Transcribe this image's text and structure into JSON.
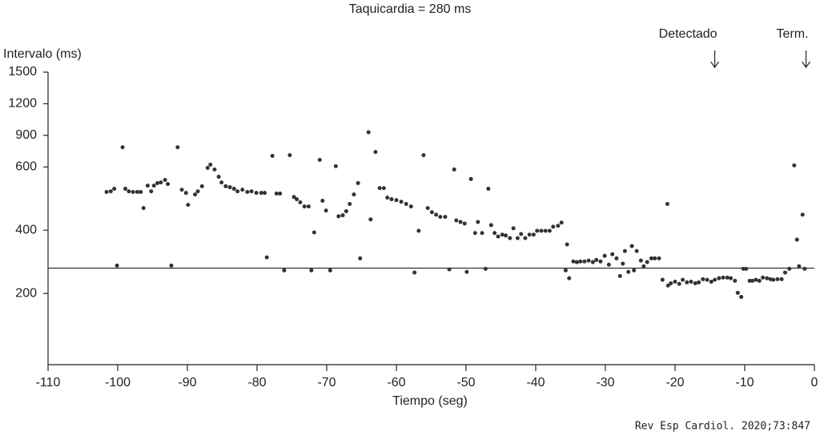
{
  "chart_data": {
    "type": "scatter",
    "title": "Taquicardia = 280 ms",
    "ylabel": "Intervalo (ms)",
    "xlabel": "Tiempo (seg)",
    "source": "Rev Esp Cardiol. 2020;73:847",
    "color": "#333333",
    "threshold": 280,
    "y_break": 600,
    "xlim": [
      -110,
      0
    ],
    "xticks": [
      -110,
      -100,
      -90,
      -80,
      -70,
      -60,
      -50,
      -40,
      -30,
      -20,
      -10,
      0
    ],
    "ylim": [
      0,
      1500
    ],
    "yticks": [
      200,
      400,
      600,
      900,
      1200,
      1500
    ],
    "annotations": [
      {
        "text": "Detectado",
        "x": -14.3
      },
      {
        "text": "Term.",
        "x": -1.2
      }
    ],
    "x": [
      -101.6,
      -101.0,
      -100.5,
      -100.1,
      -99.3,
      -98.9,
      -98.4,
      -97.8,
      -97.2,
      -96.7,
      -96.3,
      -95.7,
      -95.2,
      -94.8,
      -94.3,
      -93.8,
      -93.2,
      -92.8,
      -92.3,
      -91.4,
      -90.8,
      -90.2,
      -89.9,
      -88.9,
      -88.5,
      -87.9,
      -87.1,
      -86.7,
      -86.1,
      -85.5,
      -85.1,
      -84.5,
      -83.9,
      -83.3,
      -82.8,
      -82.1,
      -81.4,
      -80.8,
      -80.1,
      -79.4,
      -78.9,
      -78.6,
      -77.8,
      -77.2,
      -76.7,
      -76.1,
      -75.3,
      -74.7,
      -74.3,
      -73.8,
      -73.2,
      -72.6,
      -71.8,
      -72.2,
      -71.0,
      -70.6,
      -70.1,
      -69.5,
      -68.7,
      -68.3,
      -67.7,
      -67.2,
      -66.7,
      -66.1,
      -65.5,
      -65.2,
      -64.0,
      -63.7,
      -63.0,
      -62.4,
      -61.8,
      -61.3,
      -60.7,
      -60.0,
      -59.3,
      -58.6,
      -57.9,
      -57.4,
      -56.8,
      -56.1,
      -55.5,
      -54.9,
      -54.3,
      -53.7,
      -53.0,
      -52.4,
      -51.7,
      -51.4,
      -50.8,
      -50.2,
      -49.9,
      -49.3,
      -48.7,
      -48.3,
      -47.7,
      -47.2,
      -46.8,
      -46.4,
      -45.9,
      -45.4,
      -44.8,
      -44.3,
      -43.7,
      -43.2,
      -42.6,
      -42.1,
      -41.5,
      -40.9,
      -40.3,
      -39.8,
      -39.2,
      -38.6,
      -38.0,
      -37.5,
      -36.8,
      -36.3,
      -35.7,
      -35.5,
      -35.2,
      -34.6,
      -34.1,
      -33.6,
      -33.0,
      -32.4,
      -31.8,
      -31.3,
      -30.7,
      -30.1,
      -29.5,
      -29.0,
      -28.4,
      -27.9,
      -27.5,
      -27.2,
      -26.7,
      -26.2,
      -25.9,
      -25.5,
      -24.9,
      -24.5,
      -24.0,
      -23.4,
      -22.9,
      -22.3,
      -21.8,
      -21.1,
      -21.0,
      -20.6,
      -20.0,
      -19.4,
      -18.9,
      -18.3,
      -17.7,
      -17.1,
      -16.6,
      -16.0,
      -15.4,
      -14.8,
      -14.3,
      -13.7,
      -13.1,
      -12.5,
      -12.0,
      -11.4,
      -11.0,
      -10.5,
      -10.2,
      -9.8,
      -9.3,
      -8.9,
      -8.4,
      -7.9,
      -7.4,
      -6.8,
      -6.3,
      -5.9,
      -5.3,
      -4.7,
      -4.2,
      -3.6,
      -2.9,
      -2.5,
      -2.2,
      -1.7,
      -1.4
    ],
    "values": [
      521,
      523,
      531,
      288,
      787,
      531,
      523,
      521,
      521,
      521,
      470,
      541,
      523,
      541,
      549,
      551,
      559,
      546,
      288,
      787,
      528,
      518,
      480,
      513,
      523,
      539,
      597,
      622,
      592,
      569,
      551,
      539,
      536,
      531,
      523,
      528,
      521,
      523,
      518,
      518,
      518,
      314,
      705,
      516,
      516,
      273,
      712,
      505,
      498,
      488,
      475,
      475,
      393,
      273,
      667,
      493,
      462,
      273,
      607,
      444,
      447,
      460,
      483,
      513,
      549,
      311,
      930,
      434,
      742,
      533,
      533,
      503,
      498,
      495,
      490,
      483,
      475,
      266,
      398,
      712,
      470,
      457,
      449,
      442,
      442,
      276,
      592,
      431,
      426,
      421,
      268,
      562,
      391,
      426,
      391,
      278,
      531,
      416,
      391,
      380,
      386,
      383,
      375,
      406,
      375,
      388,
      375,
      386,
      386,
      398,
      398,
      398,
      398,
      411,
      414,
      424,
      273,
      355,
      248,
      301,
      299,
      301,
      301,
      304,
      299,
      306,
      301,
      319,
      291,
      324,
      311,
      255,
      294,
      334,
      268,
      350,
      273,
      334,
      304,
      286,
      299,
      311,
      311,
      311,
      243,
      483,
      225,
      232,
      237,
      230,
      243,
      235,
      237,
      232,
      235,
      245,
      243,
      237,
      243,
      248,
      250,
      250,
      248,
      240,
      202,
      189,
      278,
      278,
      240,
      240,
      243,
      240,
      250,
      248,
      245,
      243,
      245,
      245,
      266,
      278,
      615,
      370,
      286,
      449,
      278
    ]
  }
}
